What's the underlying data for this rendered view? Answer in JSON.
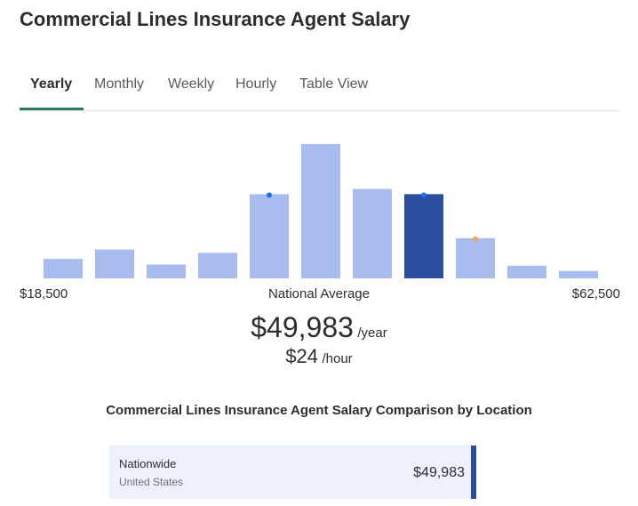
{
  "page": {
    "title": "Commercial Lines Insurance Agent Salary"
  },
  "tabs": [
    {
      "label": "Yearly",
      "active": true
    },
    {
      "label": "Monthly",
      "active": false
    },
    {
      "label": "Weekly",
      "active": false
    },
    {
      "label": "Hourly",
      "active": false
    },
    {
      "label": "Table View",
      "active": false
    }
  ],
  "chart_data": {
    "type": "bar",
    "title": "",
    "bar_values_relative": [
      0.145,
      0.215,
      0.103,
      0.19,
      0.627,
      1.0,
      0.666,
      0.627,
      0.299,
      0.094,
      0.055
    ],
    "highlighted_bar_index": 7,
    "markers": [
      {
        "bar_index": 4,
        "color": "#1a73e8"
      },
      {
        "bar_index": 7,
        "color": "#1a73e8"
      },
      {
        "bar_index": 8,
        "color": "#f5a35c"
      }
    ],
    "x_min_label": "$18,500",
    "x_center_label": "National Average",
    "x_max_label": "$62,500",
    "colors": {
      "bar": "#a9bcf0",
      "bar_highlight": "#2b4ea0"
    }
  },
  "average": {
    "yearly_value": "$49,983",
    "yearly_unit": "/year",
    "hourly_value": "$24",
    "hourly_unit": "/hour"
  },
  "comparison": {
    "title": "Commercial Lines Insurance Agent Salary Comparison by Location",
    "rows": [
      {
        "name": "Nationwide",
        "country": "United States",
        "salary": "$49,983"
      }
    ]
  }
}
